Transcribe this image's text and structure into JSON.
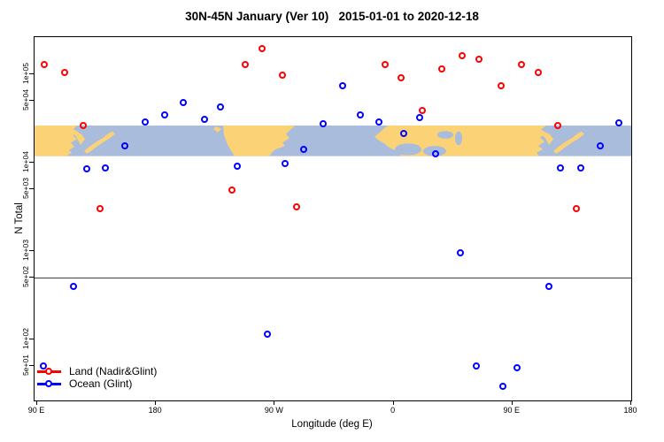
{
  "colors": {
    "land_series": "#ff0000",
    "ocean_series": "#0000ff",
    "map_land": "#fbd275",
    "map_ocean": "#a9bcdb",
    "reference_line": "#404040"
  },
  "chart_data": {
    "type": "scatter",
    "title": "30N-45N January (Ver 10)   2015-01-01 to 2020-12-18",
    "xlabel": "Longitude (deg E)",
    "ylabel": "N Total",
    "x_axis": {
      "range": [
        88,
        540
      ],
      "ticks": [
        90,
        180,
        270,
        360,
        450,
        540
      ],
      "tick_labels": [
        "90 E",
        "180",
        "90 W",
        "0",
        "90 E",
        "180"
      ],
      "note": "longitude axis continues eastward past 180 and wraps: 90E,180,90W,0,90E,180"
    },
    "y_axis": {
      "scale": "log",
      "range": [
        20.4,
        262000
      ],
      "ticks": [
        50,
        100,
        500,
        1000,
        5000,
        10000,
        50000,
        100000
      ],
      "tick_labels": [
        "5e+01",
        "1e+02",
        "5e+02",
        "1e+03",
        "5e+03",
        "1e+04",
        "5e+04",
        "1e+05"
      ]
    },
    "reference_line_value": 500,
    "map_band": {
      "description": "world coastline strip for latitude band 30N-45N drawn across plot",
      "value_top": 26200,
      "value_bottom": 11800
    },
    "legend_position": "bottom-left",
    "series": [
      {
        "name": "Land (Nadir&Glint)",
        "color": "#ff0000",
        "points": [
          [
            96,
            126000
          ],
          [
            111,
            102000
          ],
          [
            125,
            25600
          ],
          [
            138,
            2950
          ],
          [
            238,
            4770
          ],
          [
            248,
            128000
          ],
          [
            261,
            190000
          ],
          [
            276,
            95000
          ],
          [
            287,
            3080
          ],
          [
            354,
            126000
          ],
          [
            366,
            90600
          ],
          [
            382,
            37900
          ],
          [
            397,
            112000
          ],
          [
            412,
            158000
          ],
          [
            425,
            144000
          ],
          [
            442,
            72700
          ],
          [
            457,
            126000
          ],
          [
            470,
            102000
          ],
          [
            485,
            25600
          ],
          [
            499,
            2950
          ]
        ]
      },
      {
        "name": "Ocean (Glint)",
        "color": "#0000ff",
        "points": [
          [
            95,
            49
          ],
          [
            118,
            390
          ],
          [
            128,
            8300
          ],
          [
            142,
            8500
          ],
          [
            157,
            15100
          ],
          [
            172,
            28100
          ],
          [
            187,
            33900
          ],
          [
            201,
            46800
          ],
          [
            217,
            30200
          ],
          [
            229,
            41700
          ],
          [
            242,
            8900
          ],
          [
            265,
            112
          ],
          [
            278,
            9550
          ],
          [
            292,
            13900
          ],
          [
            307,
            26900
          ],
          [
            322,
            72700
          ],
          [
            335,
            33900
          ],
          [
            349,
            28100
          ],
          [
            368,
            20800
          ],
          [
            380,
            31600
          ],
          [
            392,
            12400
          ],
          [
            411,
            930
          ],
          [
            423,
            49
          ],
          [
            443,
            29
          ],
          [
            454,
            47
          ],
          [
            478,
            390
          ],
          [
            487,
            8500
          ],
          [
            502,
            8500
          ],
          [
            517,
            15100
          ],
          [
            531,
            27500
          ]
        ]
      }
    ]
  }
}
